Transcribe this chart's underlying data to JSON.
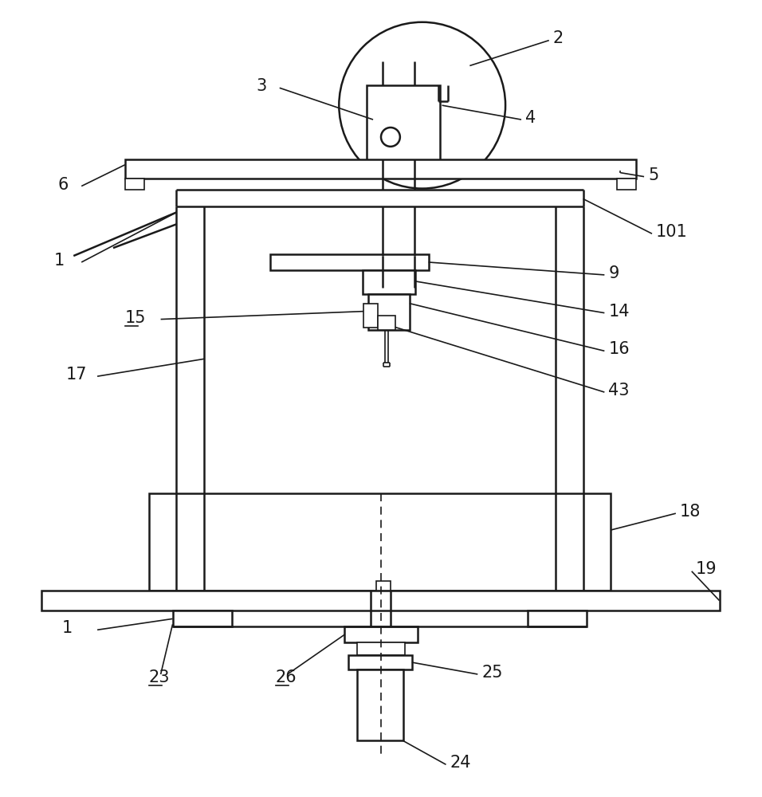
{
  "bg_color": "#ffffff",
  "line_color": "#1a1a1a",
  "lw_main": 1.8,
  "lw_thin": 1.2,
  "label_fontsize": 15,
  "underlined_labels": [
    "15",
    "23",
    "26"
  ]
}
